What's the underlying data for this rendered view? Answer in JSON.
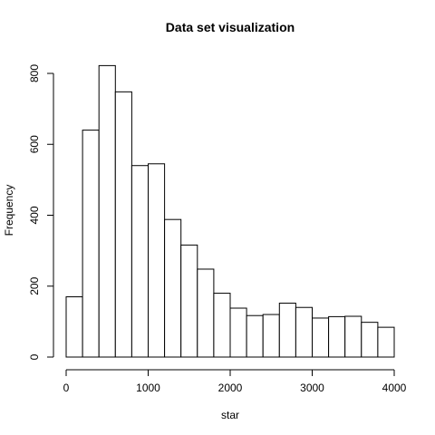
{
  "chart_data": {
    "type": "histogram",
    "title": "Data set visualization",
    "xlabel": "star",
    "ylabel": "Frequency",
    "bin_edges": [
      0,
      200,
      400,
      600,
      800,
      1000,
      1200,
      1400,
      1600,
      1800,
      2000,
      2200,
      2400,
      2600,
      2800,
      3000,
      3200,
      3400,
      3600,
      3800,
      4000
    ],
    "values": [
      170,
      640,
      822,
      748,
      540,
      545,
      388,
      316,
      248,
      180,
      138,
      117,
      120,
      152,
      140,
      110,
      114,
      115,
      98,
      84
    ],
    "xlim": [
      0,
      4000
    ],
    "ylim": [
      0,
      822
    ],
    "xticks": [
      0,
      1000,
      2000,
      3000,
      4000
    ],
    "xtick_labels": [
      "0",
      "1000",
      "2000",
      "3000",
      "4000"
    ],
    "yticks": [
      0,
      200,
      400,
      600,
      800
    ],
    "ytick_labels": [
      "0",
      "200",
      "400",
      "600",
      "800"
    ],
    "bar_fill": "#ffffff",
    "bar_stroke": "#000000",
    "grid": false,
    "legend": "none"
  }
}
